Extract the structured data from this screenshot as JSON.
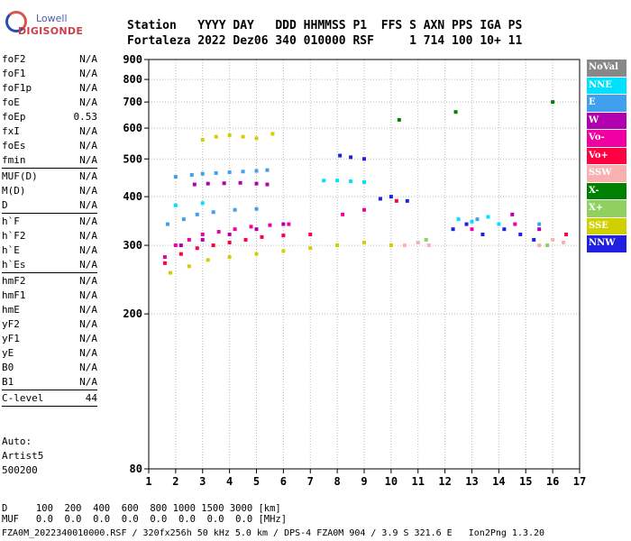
{
  "logo": {
    "line1": "Lowell",
    "line2": "DIGISONDE"
  },
  "header": {
    "row1": "Station   YYYY DAY   DDD HHMMSS P1  FFS S AXN PPS IGA PS",
    "row2": "Fortaleza 2022 Dez06 340 010000 RSF     1 714 100 10+ 11"
  },
  "params": [
    {
      "key": "foF2",
      "value": "N/A"
    },
    {
      "key": "foF1",
      "value": "N/A"
    },
    {
      "key": "foF1p",
      "value": "N/A"
    },
    {
      "key": "foE",
      "value": "N/A"
    },
    {
      "key": "foEp",
      "value": "0.53"
    },
    {
      "key": "fxI",
      "value": "N/A"
    },
    {
      "key": "foEs",
      "value": "N/A"
    },
    {
      "key": "fmin",
      "value": "N/A",
      "sep": true
    },
    {
      "key": "MUF(D)",
      "value": "N/A"
    },
    {
      "key": "M(D)",
      "value": "N/A"
    },
    {
      "key": "D",
      "value": "N/A",
      "sep": true
    },
    {
      "key": "h`F",
      "value": "N/A"
    },
    {
      "key": "h`F2",
      "value": "N/A"
    },
    {
      "key": "h`E",
      "value": "N/A"
    },
    {
      "key": "h`Es",
      "value": "N/A",
      "sep": true
    },
    {
      "key": "hmF2",
      "value": "N/A"
    },
    {
      "key": "hmF1",
      "value": "N/A"
    },
    {
      "key": "hmE",
      "value": "N/A"
    },
    {
      "key": "yF2",
      "value": "N/A"
    },
    {
      "key": "yF1",
      "value": "N/A"
    },
    {
      "key": "yE",
      "value": "N/A"
    },
    {
      "key": "B0",
      "value": "N/A"
    },
    {
      "key": "B1",
      "value": "N/A",
      "sep": true
    },
    {
      "key": "C-level",
      "value": "44",
      "sep": true
    }
  ],
  "auto": {
    "line1": "Auto:",
    "line2": "Artist5",
    "line3": "500200"
  },
  "legend": [
    {
      "label": "NoVal",
      "color": "#888888"
    },
    {
      "label": "NNE",
      "color": "#00e0ff"
    },
    {
      "label": "E",
      "color": "#40a0f0"
    },
    {
      "label": "W",
      "color": "#b000b0"
    },
    {
      "label": "Vo-",
      "color": "#f000a0"
    },
    {
      "label": "Vo+",
      "color": "#ff0040"
    },
    {
      "label": "SSW",
      "color": "#f8b0b0"
    },
    {
      "label": "X-",
      "color": "#008000"
    },
    {
      "label": "X+",
      "color": "#90d060"
    },
    {
      "label": "SSE",
      "color": "#d0d000"
    },
    {
      "label": "NNW",
      "color": "#2020e0"
    }
  ],
  "chart_data": {
    "type": "scatter",
    "title": "",
    "xlabel": "",
    "ylabel": "",
    "xlim": [
      1,
      17
    ],
    "ylim": [
      80,
      900
    ],
    "y_scale": "log",
    "x_ticks": [
      1,
      2,
      3,
      4,
      5,
      6,
      7,
      8,
      9,
      10,
      11,
      12,
      13,
      14,
      15,
      16,
      17
    ],
    "y_ticks": [
      80,
      200,
      300,
      400,
      500,
      600,
      700,
      800,
      900
    ],
    "grid": true,
    "series": [
      {
        "name": "E",
        "color": "#40a0f0",
        "points": [
          [
            2.0,
            450
          ],
          [
            2.6,
            455
          ],
          [
            3.0,
            458
          ],
          [
            3.5,
            460
          ],
          [
            4.0,
            462
          ],
          [
            4.5,
            464
          ],
          [
            5.0,
            466
          ],
          [
            5.4,
            468
          ],
          [
            1.7,
            340
          ],
          [
            2.3,
            350
          ],
          [
            2.8,
            360
          ],
          [
            3.4,
            365
          ],
          [
            4.2,
            370
          ],
          [
            5.0,
            372
          ],
          [
            13.2,
            350
          ],
          [
            15.5,
            340
          ]
        ]
      },
      {
        "name": "W",
        "color": "#b000b0",
        "points": [
          [
            2.7,
            430
          ],
          [
            3.2,
            432
          ],
          [
            3.8,
            433
          ],
          [
            4.4,
            434
          ],
          [
            5.0,
            432
          ],
          [
            5.4,
            430
          ],
          [
            2.2,
            300
          ],
          [
            3.0,
            310
          ],
          [
            4.0,
            320
          ],
          [
            5.0,
            330
          ],
          [
            6.0,
            340
          ],
          [
            14.5,
            360
          ],
          [
            15.5,
            330
          ]
        ]
      },
      {
        "name": "Vo-",
        "color": "#f000a0",
        "points": [
          [
            1.6,
            280
          ],
          [
            2.0,
            300
          ],
          [
            2.5,
            310
          ],
          [
            3.0,
            320
          ],
          [
            3.6,
            325
          ],
          [
            4.2,
            330
          ],
          [
            4.8,
            335
          ],
          [
            5.5,
            338
          ],
          [
            6.2,
            340
          ],
          [
            8.2,
            360
          ],
          [
            9.0,
            370
          ],
          [
            13.0,
            330
          ],
          [
            14.6,
            340
          ]
        ]
      },
      {
        "name": "Vo+",
        "color": "#ff0040",
        "points": [
          [
            1.6,
            270
          ],
          [
            2.2,
            285
          ],
          [
            2.8,
            295
          ],
          [
            3.4,
            300
          ],
          [
            4.0,
            305
          ],
          [
            4.6,
            310
          ],
          [
            5.2,
            315
          ],
          [
            6.0,
            318
          ],
          [
            7.0,
            320
          ],
          [
            10.2,
            390
          ],
          [
            16.5,
            320
          ]
        ]
      },
      {
        "name": "SSW",
        "color": "#f8b0b0",
        "points": [
          [
            10.5,
            300
          ],
          [
            11.0,
            305
          ],
          [
            11.4,
            300
          ],
          [
            15.5,
            300
          ],
          [
            16.0,
            310
          ],
          [
            16.4,
            305
          ]
        ]
      },
      {
        "name": "SSE",
        "color": "#d0d000",
        "points": [
          [
            3.0,
            560
          ],
          [
            3.5,
            570
          ],
          [
            4.0,
            575
          ],
          [
            4.5,
            570
          ],
          [
            5.0,
            565
          ],
          [
            5.6,
            580
          ],
          [
            1.8,
            255
          ],
          [
            2.5,
            265
          ],
          [
            3.2,
            275
          ],
          [
            4.0,
            280
          ],
          [
            5.0,
            285
          ],
          [
            6.0,
            290
          ],
          [
            7.0,
            295
          ],
          [
            8.0,
            300
          ],
          [
            9.0,
            305
          ],
          [
            10.0,
            300
          ]
        ]
      },
      {
        "name": "NNW",
        "color": "#2020e0",
        "points": [
          [
            8.1,
            510
          ],
          [
            8.5,
            505
          ],
          [
            9.0,
            500
          ],
          [
            9.6,
            395
          ],
          [
            10.0,
            400
          ],
          [
            10.6,
            390
          ],
          [
            12.3,
            330
          ],
          [
            12.8,
            340
          ],
          [
            13.4,
            320
          ],
          [
            14.2,
            330
          ],
          [
            14.8,
            320
          ],
          [
            15.3,
            310
          ]
        ]
      },
      {
        "name": "NNE",
        "color": "#00e0ff",
        "points": [
          [
            7.5,
            440
          ],
          [
            8.0,
            440
          ],
          [
            8.5,
            438
          ],
          [
            9.0,
            436
          ],
          [
            2.0,
            380
          ],
          [
            3.0,
            385
          ],
          [
            12.5,
            350
          ],
          [
            13.0,
            345
          ],
          [
            13.6,
            355
          ],
          [
            14.0,
            340
          ]
        ]
      },
      {
        "name": "X-",
        "color": "#008000",
        "points": [
          [
            12.4,
            660
          ],
          [
            10.3,
            630
          ],
          [
            16.0,
            700
          ]
        ]
      },
      {
        "name": "X+",
        "color": "#90d060",
        "points": [
          [
            11.3,
            310
          ],
          [
            15.8,
            300
          ]
        ]
      }
    ]
  },
  "footer": {
    "line1": "D     100  200  400  600  800 1000 1500 3000 [km]",
    "line2": "MUF   0.0  0.0  0.0  0.0  0.0  0.0  0.0  0.0 [MHz]",
    "line3": "FZA0M_2022340010000.RSF / 320fx256h 50 kHz 5.0 km / DPS-4 FZA0M 904 / 3.9 S 321.6 E   Ion2Png 1.3.20"
  }
}
